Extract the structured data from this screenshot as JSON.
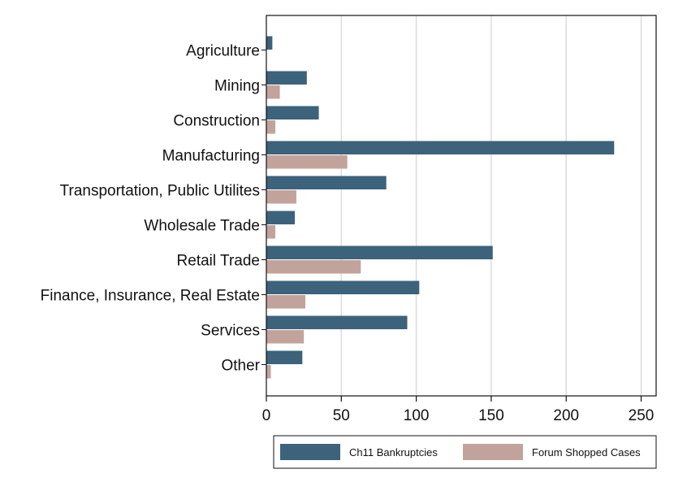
{
  "chart_data": {
    "type": "bar",
    "orientation": "horizontal",
    "categories": [
      "Agriculture",
      "Mining",
      "Construction",
      "Manufacturing",
      "Transportation, Public Utilites",
      "Wholesale Trade",
      "Retail Trade",
      "Finance, Insurance, Real Estate",
      "Services",
      "Other"
    ],
    "series": [
      {
        "name": "Ch11 Bankruptcies",
        "color": "#3d627c",
        "values": [
          4,
          27,
          35,
          232,
          80,
          19,
          151,
          102,
          94,
          24
        ]
      },
      {
        "name": "Forum Shopped Cases",
        "color": "#c2a39b",
        "values": [
          0,
          9,
          6,
          54,
          20,
          6,
          63,
          26,
          25,
          3
        ]
      }
    ],
    "xlim": [
      0,
      260
    ],
    "xticks": [
      0,
      50,
      100,
      150,
      200,
      250
    ],
    "xtick_labels": [
      "0",
      "50",
      "100",
      "150",
      "200",
      "250"
    ],
    "grid": "vertical",
    "legend_position": "bottom",
    "title": "",
    "xlabel": "",
    "ylabel": ""
  }
}
